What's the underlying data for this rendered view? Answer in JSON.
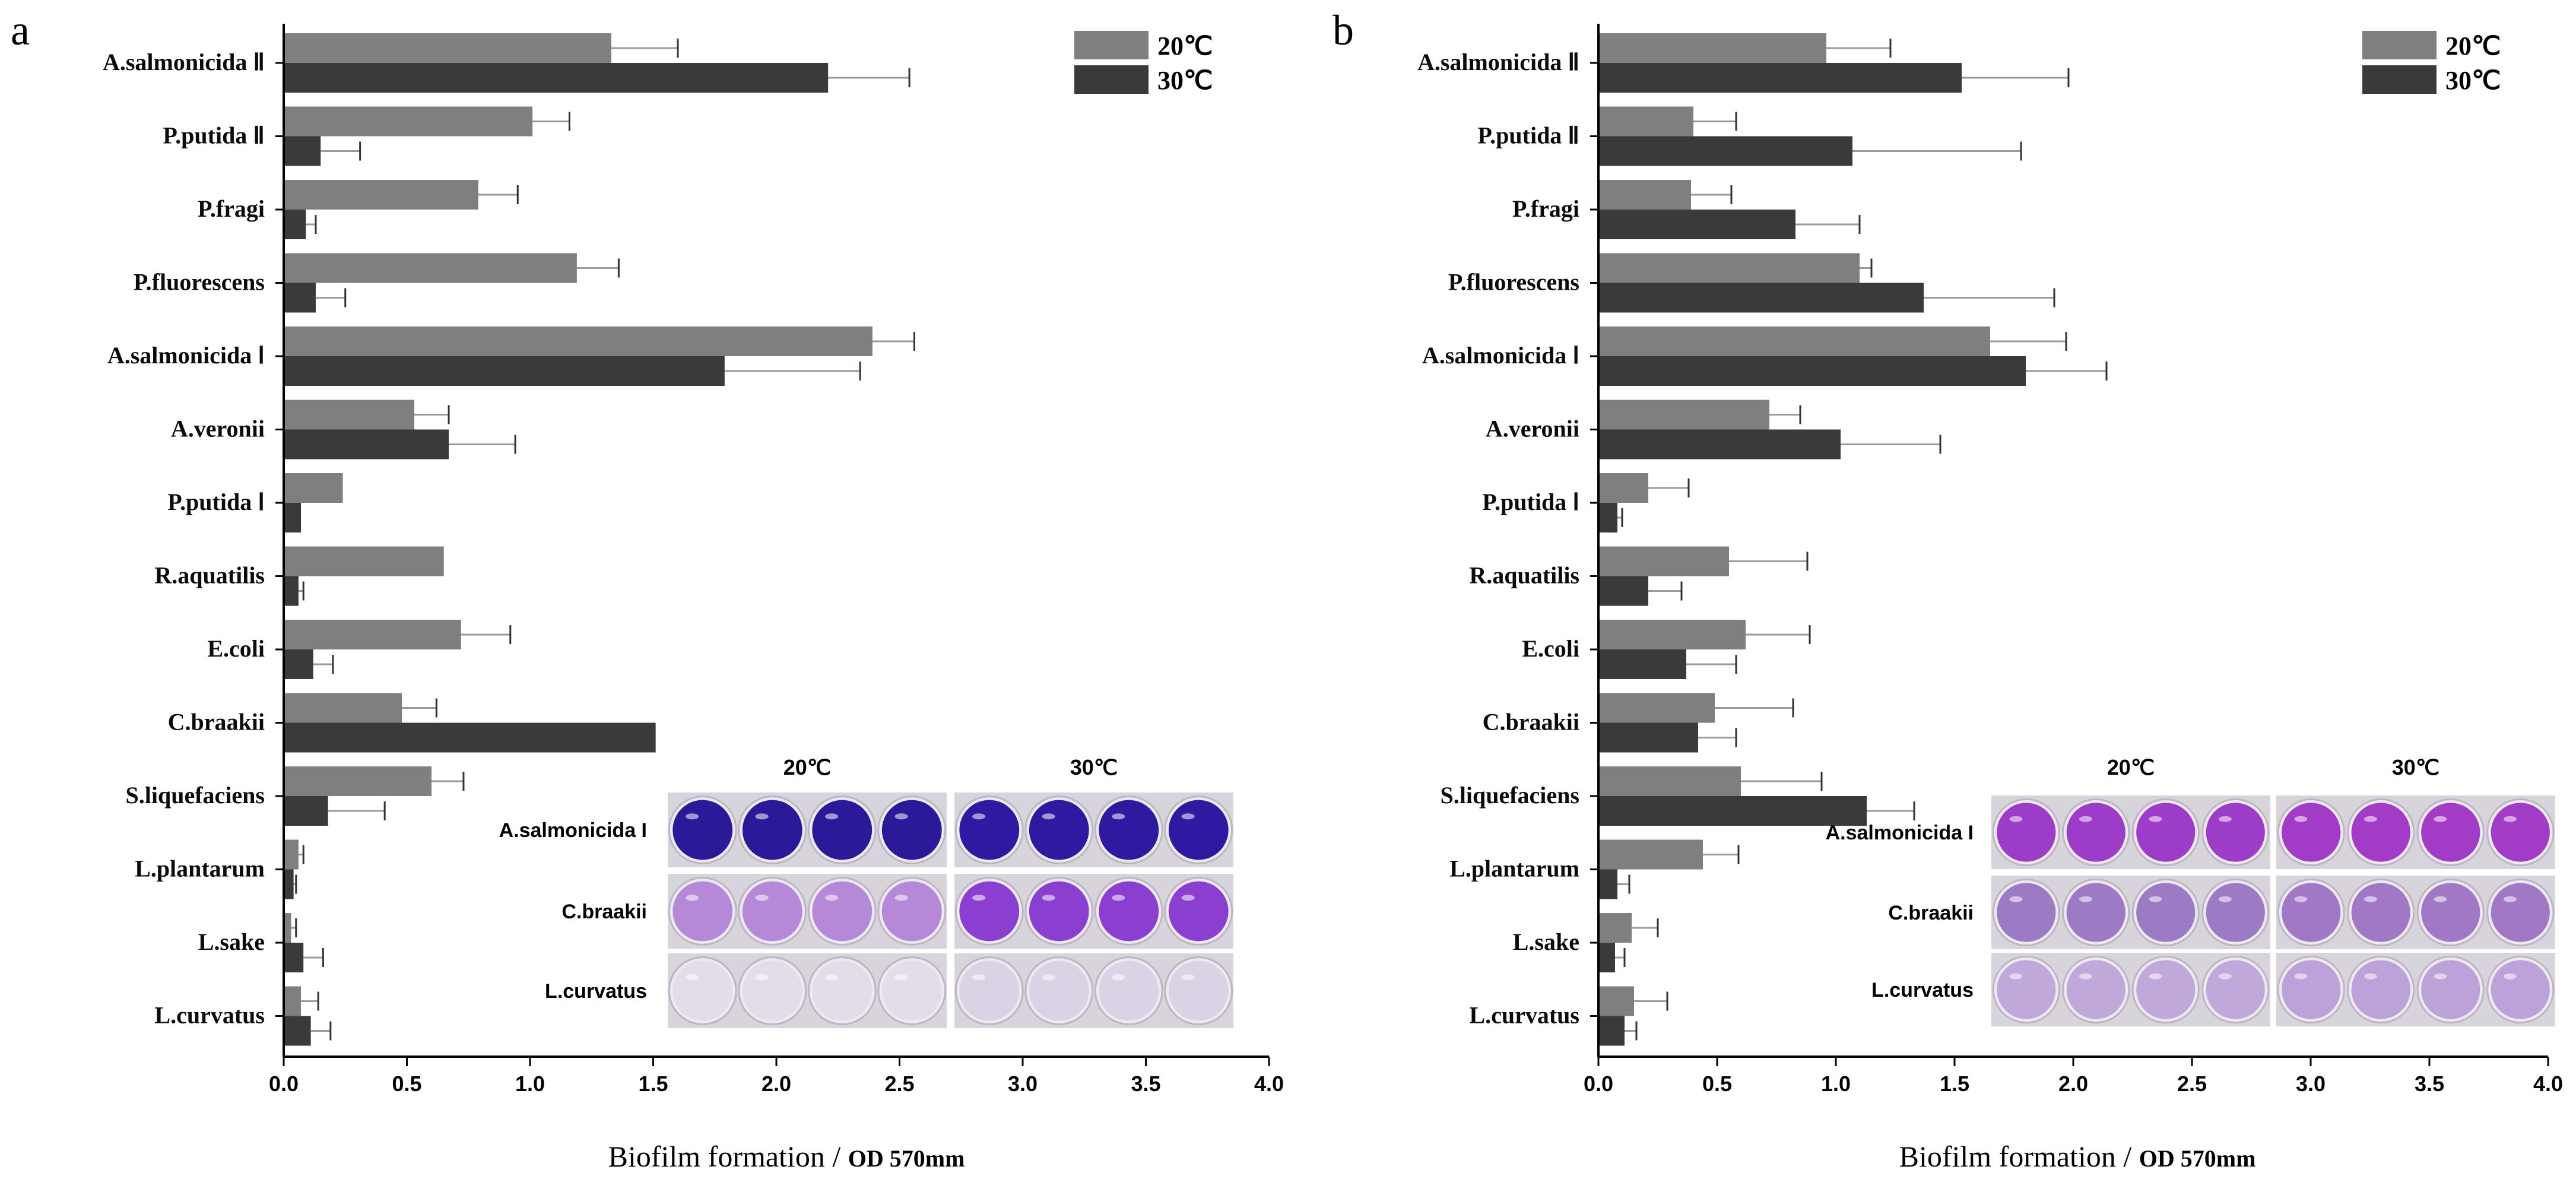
{
  "chart_data": [
    {
      "panel": "a",
      "type": "bar",
      "orientation": "horizontal",
      "categories": [
        "A.salmonicida Ⅱ",
        "P.putida Ⅱ",
        "P.fragi",
        "P.fluorescens",
        "A.salmonicida Ⅰ",
        "A.veronii",
        "P.putida Ⅰ",
        "R.aquatilis",
        "E.coli",
        "C.braakii",
        "S.liquefaciens",
        "L.plantarum",
        "L.sake",
        "L.curvatus"
      ],
      "series": [
        {
          "name": "20℃",
          "color": "#7f7f7f",
          "values": [
            1.33,
            1.01,
            0.79,
            1.19,
            2.39,
            0.53,
            0.24,
            0.65,
            0.72,
            0.48,
            0.6,
            0.06,
            0.03,
            0.07
          ],
          "errors": [
            0.27,
            0.15,
            0.16,
            0.17,
            0.17,
            0.14,
            0.0,
            0.0,
            0.2,
            0.14,
            0.13,
            0.02,
            0.02,
            0.07
          ]
        },
        {
          "name": "30℃",
          "color": "#3a3a3a",
          "values": [
            2.21,
            0.15,
            0.09,
            0.13,
            1.79,
            0.67,
            0.07,
            0.06,
            0.12,
            1.51,
            0.18,
            0.04,
            0.08,
            0.11
          ],
          "errors": [
            0.33,
            0.16,
            0.04,
            0.12,
            0.55,
            0.27,
            0.0,
            0.02,
            0.08,
            0.0,
            0.23,
            0.01,
            0.08,
            0.08
          ]
        }
      ],
      "xlim": [
        0,
        4.0
      ],
      "xticks": [
        "0.0",
        "0.5",
        "1.0",
        "1.5",
        "2.0",
        "2.5",
        "3.0",
        "3.5",
        "4.0"
      ],
      "xlabel_main": "Biofilm formation",
      "xlabel_sep": " / ",
      "xlabel_unit": "OD 570mm",
      "legend": [
        "20℃",
        "30℃"
      ],
      "legend_position": "top-right",
      "inset": {
        "headers": [
          "20℃",
          "30℃"
        ],
        "rows": [
          "A.salmonicida I",
          "C.braakii",
          "L.curvatus"
        ],
        "well_colors": [
          [
            "#2a1a9a",
            "#2d1aa0"
          ],
          [
            "#b588d8",
            "#8a3fd0"
          ],
          [
            "#e2dde8",
            "#dcd2e6"
          ]
        ]
      }
    },
    {
      "panel": "b",
      "type": "bar",
      "orientation": "horizontal",
      "categories": [
        "A.salmonicida Ⅱ",
        "P.putida Ⅱ",
        "P.fragi",
        "P.fluorescens",
        "A.salmonicida Ⅰ",
        "A.veronii",
        "P.putida Ⅰ",
        "R.aquatilis",
        "E.coli",
        "C.braakii",
        "S.liquefaciens",
        "L.plantarum",
        "L.sake",
        "L.curvatus"
      ],
      "series": [
        {
          "name": "20℃",
          "color": "#7f7f7f",
          "values": [
            0.96,
            0.4,
            0.39,
            1.1,
            1.65,
            0.72,
            0.21,
            0.55,
            0.62,
            0.49,
            0.6,
            0.44,
            0.14,
            0.15
          ],
          "errors": [
            0.27,
            0.18,
            0.17,
            0.05,
            0.32,
            0.13,
            0.17,
            0.33,
            0.27,
            0.33,
            0.34,
            0.15,
            0.11,
            0.14
          ]
        },
        {
          "name": "30℃",
          "color": "#3a3a3a",
          "values": [
            1.53,
            1.07,
            0.83,
            1.37,
            1.8,
            1.02,
            0.08,
            0.21,
            0.37,
            0.42,
            1.13,
            0.08,
            0.07,
            0.11
          ],
          "errors": [
            0.45,
            0.71,
            0.27,
            0.55,
            0.34,
            0.42,
            0.02,
            0.14,
            0.21,
            0.16,
            0.2,
            0.05,
            0.04,
            0.05
          ]
        }
      ],
      "xlim": [
        0,
        4.0
      ],
      "xticks": [
        "0.0",
        "0.5",
        "1.0",
        "1.5",
        "2.0",
        "2.5",
        "3.0",
        "3.5",
        "4.0"
      ],
      "xlabel_main": "Biofilm formation",
      "xlabel_sep": " / ",
      "xlabel_unit": "OD 570mm",
      "legend": [
        "20℃",
        "30℃"
      ],
      "legend_position": "top-right",
      "inset": {
        "headers": [
          "20℃",
          "30℃"
        ],
        "rows": [
          "A.salmonicida I",
          "C.braakii",
          "L.curvatus"
        ],
        "well_colors": [
          [
            "#9c3cc8",
            "#a23cc6"
          ],
          [
            "#9c7ac4",
            "#a078c6"
          ],
          [
            "#c1a8da",
            "#bca2d8"
          ]
        ]
      }
    }
  ]
}
